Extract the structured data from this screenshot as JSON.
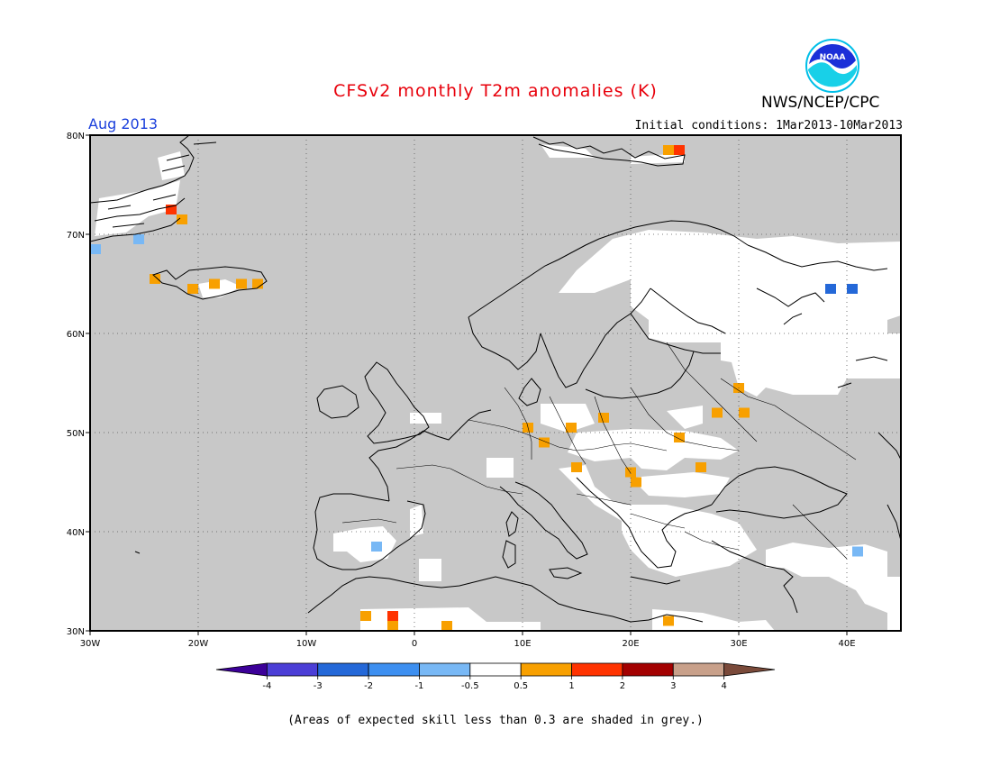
{
  "header": {
    "title": "CFSv2 monthly T2m anomalies (K)",
    "agency": "NWS/NCEP/CPC",
    "month": "Aug 2013",
    "initial_conditions": "Initial conditions: 1Mar2013-10Mar2013",
    "logo_text": "NOAA"
  },
  "colors": {
    "title": "#e8000b",
    "month": "#1a3fdc",
    "grey_mask": "#c8c8c8",
    "map_background": "#ffffff"
  },
  "map": {
    "lon_range": [
      -30,
      45
    ],
    "lat_range": [
      30,
      80
    ],
    "lat_ticks": [
      {
        "value": 80,
        "label": "80N"
      },
      {
        "value": 70,
        "label": "70N"
      },
      {
        "value": 60,
        "label": "60N"
      },
      {
        "value": 50,
        "label": "50N"
      },
      {
        "value": 40,
        "label": "40N"
      },
      {
        "value": 30,
        "label": "30N"
      }
    ],
    "lon_ticks": [
      {
        "value": -30,
        "label": "30W"
      },
      {
        "value": -20,
        "label": "20W"
      },
      {
        "value": -10,
        "label": "10W"
      },
      {
        "value": 0,
        "label": "0"
      },
      {
        "value": 10,
        "label": "10E"
      },
      {
        "value": 20,
        "label": "20E"
      },
      {
        "value": 30,
        "label": "30E"
      },
      {
        "value": 40,
        "label": "40E"
      }
    ],
    "grid": "dotted",
    "anomaly_cells": [
      {
        "lon": -22.5,
        "lat": 72.5,
        "value": 1.0
      },
      {
        "lon": -21.5,
        "lat": 71.5,
        "value": 0.7
      },
      {
        "lon": -24.0,
        "lat": 65.5,
        "value": 0.8
      },
      {
        "lon": -20.5,
        "lat": 64.5,
        "value": 0.9
      },
      {
        "lon": -18.5,
        "lat": 65.0,
        "value": 0.9
      },
      {
        "lon": -16.0,
        "lat": 65.0,
        "value": 0.8
      },
      {
        "lon": -14.5,
        "lat": 65.0,
        "value": 0.8
      },
      {
        "lon": -29.5,
        "lat": 68.5,
        "value": -0.7
      },
      {
        "lon": -25.5,
        "lat": 69.5,
        "value": -0.8
      },
      {
        "lon": 23.5,
        "lat": 78.5,
        "value": 0.9
      },
      {
        "lon": 24.5,
        "lat": 78.5,
        "value": 1.6
      },
      {
        "lon": 38.5,
        "lat": 64.5,
        "value": -2.5
      },
      {
        "lon": 40.5,
        "lat": 64.5,
        "value": -2.5
      },
      {
        "lon": 41.0,
        "lat": 38.0,
        "value": -0.8
      },
      {
        "lon": -3.5,
        "lat": 38.5,
        "value": -0.8
      },
      {
        "lon": 10.5,
        "lat": 50.5,
        "value": 0.8
      },
      {
        "lon": 12.0,
        "lat": 49.0,
        "value": 0.7
      },
      {
        "lon": 14.5,
        "lat": 50.5,
        "value": 0.8
      },
      {
        "lon": 17.5,
        "lat": 51.5,
        "value": 0.8
      },
      {
        "lon": 15.0,
        "lat": 46.5,
        "value": 0.9
      },
      {
        "lon": 20.0,
        "lat": 46.0,
        "value": 0.8
      },
      {
        "lon": 20.5,
        "lat": 45.0,
        "value": 0.7
      },
      {
        "lon": 24.5,
        "lat": 49.5,
        "value": 0.7
      },
      {
        "lon": 26.5,
        "lat": 46.5,
        "value": 0.8
      },
      {
        "lon": 28.0,
        "lat": 52.0,
        "value": 0.8
      },
      {
        "lon": 30.0,
        "lat": 54.5,
        "value": 0.7
      },
      {
        "lon": 30.5,
        "lat": 52.0,
        "value": 0.7
      },
      {
        "lon": -4.5,
        "lat": 31.5,
        "value": 0.8
      },
      {
        "lon": -2.0,
        "lat": 31.5,
        "value": 1.5
      },
      {
        "lon": -2.0,
        "lat": 30.5,
        "value": 0.9
      },
      {
        "lon": 3.0,
        "lat": 30.5,
        "value": 0.8
      },
      {
        "lon": 23.5,
        "lat": 31.0,
        "value": 0.7
      }
    ]
  },
  "colorbar": {
    "colors": [
      "#3c0098",
      "#4b3ed6",
      "#2468d8",
      "#3d8ff0",
      "#78b8f5",
      "#ffffff",
      "#f8a000",
      "#ff3300",
      "#a30000",
      "#c8a08a",
      "#7a4a3a"
    ],
    "labels": [
      "-4",
      "-3",
      "-2",
      "-1",
      "-0.5",
      "0.5",
      "1",
      "2",
      "3",
      "4"
    ]
  },
  "footer": {
    "note": "(Areas of expected skill less than 0.3 are shaded in grey.)"
  }
}
